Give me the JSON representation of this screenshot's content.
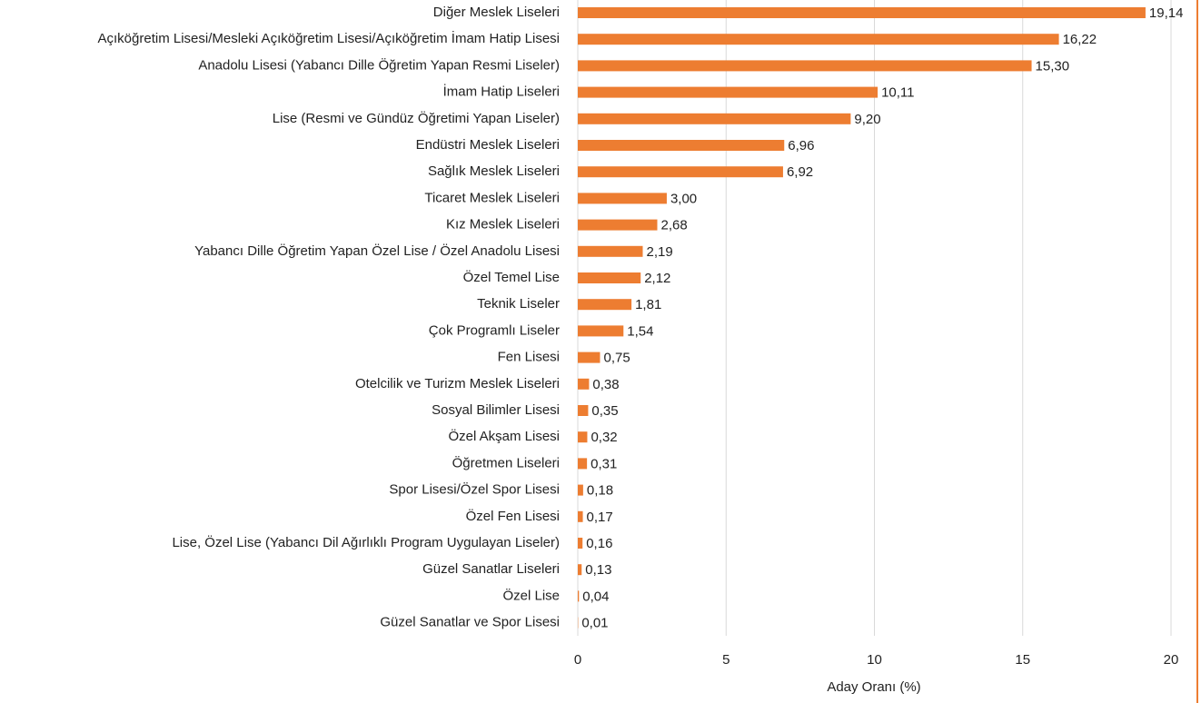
{
  "chart_data": {
    "type": "hbar",
    "x_label": "Aday Oranı (%)",
    "categories": [
      "Diğer Meslek Liseleri",
      "Açıköğretim Lisesi/Mesleki Açıköğretim Lisesi/Açıköğretim İmam Hatip Lisesi",
      "Anadolu Lisesi (Yabancı Dille Öğretim Yapan Resmi Liseler)",
      "İmam Hatip Liseleri",
      "Lise (Resmi ve Gündüz Öğretimi Yapan Liseler)",
      "Endüstri Meslek Liseleri",
      "Sağlık Meslek Liseleri",
      "Ticaret Meslek Liseleri",
      "Kız Meslek Liseleri",
      "Yabancı Dille Öğretim Yapan Özel Lise / Özel Anadolu Lisesi",
      "Özel Temel Lise",
      "Teknik Liseler",
      "Çok Programlı Liseler",
      "Fen Lisesi",
      "Otelcilik ve Turizm Meslek Liseleri",
      "Sosyal Bilimler Lisesi",
      "Özel Akşam Lisesi",
      "Öğretmen Liseleri",
      "Spor Lisesi/Özel Spor Lisesi",
      "Özel Fen Lisesi",
      "Lise, Özel Lise (Yabancı Dil Ağırlıklı Program Uygulayan Liseler)",
      "Güzel Sanatlar Liseleri",
      "Özel Lise",
      "Güzel Sanatlar ve Spor Lisesi"
    ],
    "values": [
      19.14,
      16.22,
      15.3,
      10.11,
      9.2,
      6.96,
      6.92,
      3.0,
      2.68,
      2.19,
      2.12,
      1.81,
      1.54,
      0.75,
      0.38,
      0.35,
      0.32,
      0.31,
      0.18,
      0.17,
      0.16,
      0.13,
      0.04,
      0.01
    ],
    "value_labels": [
      "19,14",
      "16,22",
      "15,30",
      "10,11",
      "9,20",
      "6,96",
      "6,92",
      "3,00",
      "2,68",
      "2,19",
      "2,12",
      "1,81",
      "1,54",
      "0,75",
      "0,38",
      "0,35",
      "0,32",
      "0,31",
      "0,18",
      "0,17",
      "0,16",
      "0,13",
      "0,04",
      "0,01"
    ],
    "color": "#ed7d31",
    "xlim": [
      0,
      20
    ],
    "xticks": [
      0,
      5,
      10,
      15,
      20
    ],
    "grid": true
  }
}
